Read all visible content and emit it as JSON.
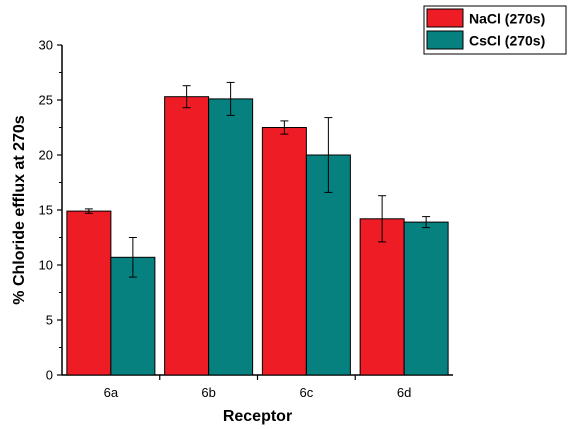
{
  "chart_data": {
    "type": "bar",
    "xlabel": "Receptor",
    "ylabel": "% Chloride efflux at 270s",
    "ylim": [
      0,
      30
    ],
    "yticks": [
      0,
      5,
      10,
      15,
      20,
      25,
      30
    ],
    "categories": [
      "6a",
      "6b",
      "6c",
      "6d"
    ],
    "series": [
      {
        "name": "NaCl (270s)",
        "color": "#ee1c25",
        "values": [
          14.9,
          25.3,
          22.5,
          14.2
        ],
        "errors": [
          0.2,
          1.0,
          0.6,
          2.1
        ]
      },
      {
        "name": "CsCl (270s)",
        "color": "#078080",
        "values": [
          10.7,
          25.1,
          20.0,
          13.9
        ],
        "errors": [
          1.8,
          1.5,
          3.4,
          0.5
        ]
      }
    ],
    "legend_position": "top-right",
    "error_bars": true,
    "grid": false
  }
}
